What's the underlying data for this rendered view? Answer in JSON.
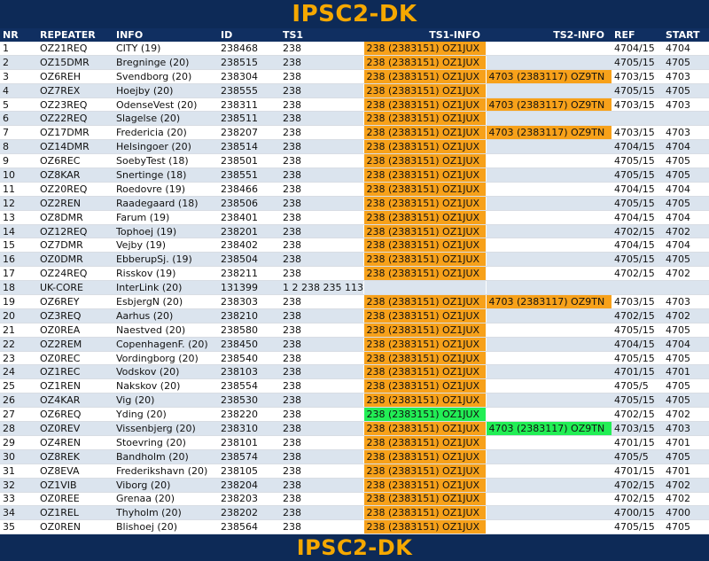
{
  "title": "IPSC2-DK",
  "footer_title": "IPSC2-DK",
  "colors": {
    "highlight_orange": "#f7a11a",
    "highlight_green": "#22ee55",
    "banner_bg": "#0d2a57",
    "banner_text": "#f5a800"
  },
  "headers": [
    "NR",
    "REPEATER",
    "INFO",
    "ID",
    "TS1",
    "TS1-INFO",
    "TS2-INFO",
    "REF",
    "START"
  ],
  "rows": [
    {
      "nr": "1",
      "repeater": "OZ21REQ",
      "info": "CITY (19)",
      "id": "238468",
      "ts1": "238",
      "ts1_info": "238 (2383151) OZ1JUX",
      "ts1_hl": "orange",
      "ts2_info": "",
      "ts2_hl": "",
      "ref": "4704/15",
      "start": "4704"
    },
    {
      "nr": "2",
      "repeater": "OZ15DMR",
      "info": "Bregninge (20)",
      "id": "238515",
      "ts1": "238",
      "ts1_info": "238 (2383151) OZ1JUX",
      "ts1_hl": "orange",
      "ts2_info": "",
      "ts2_hl": "",
      "ref": "4705/15",
      "start": "4705"
    },
    {
      "nr": "3",
      "repeater": "OZ6REH",
      "info": "Svendborg (20)",
      "id": "238304",
      "ts1": "238",
      "ts1_info": "238 (2383151) OZ1JUX",
      "ts1_hl": "orange",
      "ts2_info": "4703 (2383117) OZ9TN",
      "ts2_hl": "orange",
      "ref": "4703/15",
      "start": "4703"
    },
    {
      "nr": "4",
      "repeater": "OZ7REX",
      "info": "Hoejby (20)",
      "id": "238555",
      "ts1": "238",
      "ts1_info": "238 (2383151) OZ1JUX",
      "ts1_hl": "orange",
      "ts2_info": "",
      "ts2_hl": "",
      "ref": "4705/15",
      "start": "4705"
    },
    {
      "nr": "5",
      "repeater": "OZ23REQ",
      "info": "OdenseVest (20)",
      "id": "238311",
      "ts1": "238",
      "ts1_info": "238 (2383151) OZ1JUX",
      "ts1_hl": "orange",
      "ts2_info": "4703 (2383117) OZ9TN",
      "ts2_hl": "orange",
      "ref": "4703/15",
      "start": "4703"
    },
    {
      "nr": "6",
      "repeater": "OZ22REQ",
      "info": "Slagelse (20)",
      "id": "238511",
      "ts1": "238",
      "ts1_info": "238 (2383151) OZ1JUX",
      "ts1_hl": "orange",
      "ts2_info": "",
      "ts2_hl": "",
      "ref": "",
      "start": ""
    },
    {
      "nr": "7",
      "repeater": "OZ17DMR",
      "info": "Fredericia (20)",
      "id": "238207",
      "ts1": "238",
      "ts1_info": "238 (2383151) OZ1JUX",
      "ts1_hl": "orange",
      "ts2_info": "4703 (2383117) OZ9TN",
      "ts2_hl": "orange",
      "ref": "4703/15",
      "start": "4703"
    },
    {
      "nr": "8",
      "repeater": "OZ14DMR",
      "info": "Helsingoer (20)",
      "id": "238514",
      "ts1": "238",
      "ts1_info": "238 (2383151) OZ1JUX",
      "ts1_hl": "orange",
      "ts2_info": "",
      "ts2_hl": "",
      "ref": "4704/15",
      "start": "4704"
    },
    {
      "nr": "9",
      "repeater": "OZ6REC",
      "info": "SoebyTest (18)",
      "id": "238501",
      "ts1": "238",
      "ts1_info": "238 (2383151) OZ1JUX",
      "ts1_hl": "orange",
      "ts2_info": "",
      "ts2_hl": "",
      "ref": "4705/15",
      "start": "4705"
    },
    {
      "nr": "10",
      "repeater": "OZ8KAR",
      "info": "Snertinge (18)",
      "id": "238551",
      "ts1": "238",
      "ts1_info": "238 (2383151) OZ1JUX",
      "ts1_hl": "orange",
      "ts2_info": "",
      "ts2_hl": "",
      "ref": "4705/15",
      "start": "4705"
    },
    {
      "nr": "11",
      "repeater": "OZ20REQ",
      "info": "Roedovre (19)",
      "id": "238466",
      "ts1": "238",
      "ts1_info": "238 (2383151) OZ1JUX",
      "ts1_hl": "orange",
      "ts2_info": "",
      "ts2_hl": "",
      "ref": "4704/15",
      "start": "4704"
    },
    {
      "nr": "12",
      "repeater": "OZ2REN",
      "info": "Raadegaard (18)",
      "id": "238506",
      "ts1": "238",
      "ts1_info": "238 (2383151) OZ1JUX",
      "ts1_hl": "orange",
      "ts2_info": "",
      "ts2_hl": "",
      "ref": "4705/15",
      "start": "4705"
    },
    {
      "nr": "13",
      "repeater": "OZ8DMR",
      "info": "Farum (19)",
      "id": "238401",
      "ts1": "238",
      "ts1_info": "238 (2383151) OZ1JUX",
      "ts1_hl": "orange",
      "ts2_info": "",
      "ts2_hl": "",
      "ref": "4704/15",
      "start": "4704"
    },
    {
      "nr": "14",
      "repeater": "OZ12REQ",
      "info": "Tophoej (19)",
      "id": "238201",
      "ts1": "238",
      "ts1_info": "238 (2383151) OZ1JUX",
      "ts1_hl": "orange",
      "ts2_info": "",
      "ts2_hl": "",
      "ref": "4702/15",
      "start": "4702"
    },
    {
      "nr": "15",
      "repeater": "OZ7DMR",
      "info": "Vejby (19)",
      "id": "238402",
      "ts1": "238",
      "ts1_info": "238 (2383151) OZ1JUX",
      "ts1_hl": "orange",
      "ts2_info": "",
      "ts2_hl": "",
      "ref": "4704/15",
      "start": "4704"
    },
    {
      "nr": "16",
      "repeater": "OZ0DMR",
      "info": "EbberupSj. (19)",
      "id": "238504",
      "ts1": "238",
      "ts1_info": "238 (2383151) OZ1JUX",
      "ts1_hl": "orange",
      "ts2_info": "",
      "ts2_hl": "",
      "ref": "4705/15",
      "start": "4705"
    },
    {
      "nr": "17",
      "repeater": "OZ24REQ",
      "info": "Risskov (19)",
      "id": "238211",
      "ts1": "238",
      "ts1_info": "238 (2383151) OZ1JUX",
      "ts1_hl": "orange",
      "ts2_info": "",
      "ts2_hl": "",
      "ref": "4702/15",
      "start": "4702"
    },
    {
      "nr": "18",
      "repeater": "UK-CORE",
      "info": "InterLink (20)",
      "id": "131399",
      "ts1": "1 2 238 235 113",
      "ts1_info": "",
      "ts1_hl": "",
      "ts2_info": "",
      "ts2_hl": "",
      "ref": "",
      "start": ""
    },
    {
      "nr": "19",
      "repeater": "OZ6REY",
      "info": "EsbjergN (20)",
      "id": "238303",
      "ts1": "238",
      "ts1_info": "238 (2383151) OZ1JUX",
      "ts1_hl": "orange",
      "ts2_info": "4703 (2383117) OZ9TN",
      "ts2_hl": "orange",
      "ref": "4703/15",
      "start": "4703"
    },
    {
      "nr": "20",
      "repeater": "OZ3REQ",
      "info": "Aarhus (20)",
      "id": "238210",
      "ts1": "238",
      "ts1_info": "238 (2383151) OZ1JUX",
      "ts1_hl": "orange",
      "ts2_info": "",
      "ts2_hl": "",
      "ref": "4702/15",
      "start": "4702"
    },
    {
      "nr": "21",
      "repeater": "OZ0REA",
      "info": "Naestved (20)",
      "id": "238580",
      "ts1": "238",
      "ts1_info": "238 (2383151) OZ1JUX",
      "ts1_hl": "orange",
      "ts2_info": "",
      "ts2_hl": "",
      "ref": "4705/15",
      "start": "4705"
    },
    {
      "nr": "22",
      "repeater": "OZ2REM",
      "info": "CopenhagenF. (20)",
      "id": "238450",
      "ts1": "238",
      "ts1_info": "238 (2383151) OZ1JUX",
      "ts1_hl": "orange",
      "ts2_info": "",
      "ts2_hl": "",
      "ref": "4704/15",
      "start": "4704"
    },
    {
      "nr": "23",
      "repeater": "OZ0REC",
      "info": "Vordingborg (20)",
      "id": "238540",
      "ts1": "238",
      "ts1_info": "238 (2383151) OZ1JUX",
      "ts1_hl": "orange",
      "ts2_info": "",
      "ts2_hl": "",
      "ref": "4705/15",
      "start": "4705"
    },
    {
      "nr": "24",
      "repeater": "OZ1REC",
      "info": "Vodskov (20)",
      "id": "238103",
      "ts1": "238",
      "ts1_info": "238 (2383151) OZ1JUX",
      "ts1_hl": "orange",
      "ts2_info": "",
      "ts2_hl": "",
      "ref": "4701/15",
      "start": "4701"
    },
    {
      "nr": "25",
      "repeater": "OZ1REN",
      "info": "Nakskov (20)",
      "id": "238554",
      "ts1": "238",
      "ts1_info": "238 (2383151) OZ1JUX",
      "ts1_hl": "orange",
      "ts2_info": "",
      "ts2_hl": "",
      "ref": "4705/5",
      "start": "4705"
    },
    {
      "nr": "26",
      "repeater": "OZ4KAR",
      "info": "Vig (20)",
      "id": "238530",
      "ts1": "238",
      "ts1_info": "238 (2383151) OZ1JUX",
      "ts1_hl": "orange",
      "ts2_info": "",
      "ts2_hl": "",
      "ref": "4705/15",
      "start": "4705"
    },
    {
      "nr": "27",
      "repeater": "OZ6REQ",
      "info": "Yding (20)",
      "id": "238220",
      "ts1": "238",
      "ts1_info": "238 (2383151) OZ1JUX",
      "ts1_hl": "green",
      "ts2_info": "",
      "ts2_hl": "",
      "ref": "4702/15",
      "start": "4702"
    },
    {
      "nr": "28",
      "repeater": "OZ0REV",
      "info": "Vissenbjerg (20)",
      "id": "238310",
      "ts1": "238",
      "ts1_info": "238 (2383151) OZ1JUX",
      "ts1_hl": "orange",
      "ts2_info": "4703 (2383117) OZ9TN",
      "ts2_hl": "green",
      "ref": "4703/15",
      "start": "4703"
    },
    {
      "nr": "29",
      "repeater": "OZ4REN",
      "info": "Stoevring (20)",
      "id": "238101",
      "ts1": "238",
      "ts1_info": "238 (2383151) OZ1JUX",
      "ts1_hl": "orange",
      "ts2_info": "",
      "ts2_hl": "",
      "ref": "4701/15",
      "start": "4701"
    },
    {
      "nr": "30",
      "repeater": "OZ8REK",
      "info": "Bandholm (20)",
      "id": "238574",
      "ts1": "238",
      "ts1_info": "238 (2383151) OZ1JUX",
      "ts1_hl": "orange",
      "ts2_info": "",
      "ts2_hl": "",
      "ref": "4705/5",
      "start": "4705"
    },
    {
      "nr": "31",
      "repeater": "OZ8EVA",
      "info": "Frederikshavn (20)",
      "id": "238105",
      "ts1": "238",
      "ts1_info": "238 (2383151) OZ1JUX",
      "ts1_hl": "orange",
      "ts2_info": "",
      "ts2_hl": "",
      "ref": "4701/15",
      "start": "4701"
    },
    {
      "nr": "32",
      "repeater": "OZ1VIB",
      "info": "Viborg (20)",
      "id": "238204",
      "ts1": "238",
      "ts1_info": "238 (2383151) OZ1JUX",
      "ts1_hl": "orange",
      "ts2_info": "",
      "ts2_hl": "",
      "ref": "4702/15",
      "start": "4702"
    },
    {
      "nr": "33",
      "repeater": "OZ0REE",
      "info": "Grenaa (20)",
      "id": "238203",
      "ts1": "238",
      "ts1_info": "238 (2383151) OZ1JUX",
      "ts1_hl": "orange",
      "ts2_info": "",
      "ts2_hl": "",
      "ref": "4702/15",
      "start": "4702"
    },
    {
      "nr": "34",
      "repeater": "OZ1REL",
      "info": "Thyholm (20)",
      "id": "238202",
      "ts1": "238",
      "ts1_info": "238 (2383151) OZ1JUX",
      "ts1_hl": "orange",
      "ts2_info": "",
      "ts2_hl": "",
      "ref": "4700/15",
      "start": "4700"
    },
    {
      "nr": "35",
      "repeater": "OZ0REN",
      "info": "Blishoej (20)",
      "id": "238564",
      "ts1": "238",
      "ts1_info": "238 (2383151) OZ1JUX",
      "ts1_hl": "orange",
      "ts2_info": "",
      "ts2_hl": "",
      "ref": "4705/15",
      "start": "4705"
    }
  ]
}
